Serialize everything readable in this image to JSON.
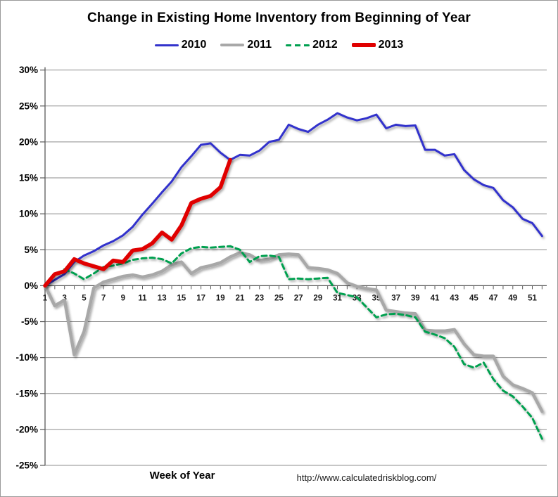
{
  "header": {
    "title": "Change in Existing Home Inventory from Beginning of Year"
  },
  "footer": {
    "xlabel": "Week of Year",
    "source_url": "http://www.calculatedriskblog.com/"
  },
  "colors": {
    "grid": "#8c8c8c",
    "axis": "#595959",
    "tick_text": "#1a1a1a",
    "series_2010": "#3333CC",
    "series_2011": "#A8A8A8",
    "series_2012": "#00A050",
    "series_2013": "#E00000"
  },
  "chart_data": {
    "type": "line",
    "title": "Change in Existing Home Inventory from Beginning of Year",
    "xlabel": "Week of Year",
    "ylabel": "",
    "x_unit": "week of year",
    "xlim": [
      1,
      52
    ],
    "ylim": [
      -25,
      30
    ],
    "x_ticks": [
      1,
      3,
      5,
      7,
      9,
      11,
      13,
      15,
      17,
      19,
      21,
      23,
      25,
      27,
      29,
      31,
      33,
      35,
      37,
      39,
      41,
      43,
      45,
      47,
      49,
      51
    ],
    "y_ticks": [
      "30%",
      "25%",
      "20%",
      "15%",
      "10%",
      "5%",
      "0%",
      "-5%",
      "-10%",
      "-15%",
      "-20%",
      "-25%"
    ],
    "grid": true,
    "legend_position": "top-center",
    "annotation": "http://www.calculatedriskblog.com/",
    "series": [
      {
        "name": "2010",
        "color": "#3333CC",
        "style": "solid",
        "width": 3,
        "values": [
          0,
          0.8,
          1.6,
          3.3,
          4.2,
          4.8,
          5.6,
          6.2,
          7.0,
          8.2,
          9.9,
          11.4,
          13.0,
          14.5,
          16.5,
          18.0,
          19.6,
          19.8,
          18.5,
          17.5,
          18.2,
          18.1,
          18.8,
          20.0,
          20.3,
          22.4,
          21.8,
          21.4,
          22.4,
          23.1,
          24.0,
          23.4,
          23.0,
          23.3,
          23.8,
          21.9,
          22.4,
          22.2,
          22.3,
          18.9,
          18.9,
          18.1,
          18.3,
          16.1,
          14.8,
          14.0,
          13.6,
          11.9,
          10.9,
          9.3,
          8.7,
          6.9
        ]
      },
      {
        "name": "2011",
        "color": "#A8A8A8",
        "style": "solid",
        "width": 4.5,
        "values": [
          0,
          -2.8,
          -2.0,
          -9.6,
          -6.4,
          -0.3,
          0.5,
          0.9,
          1.3,
          1.5,
          1.2,
          1.5,
          2.0,
          2.9,
          3.3,
          1.7,
          2.5,
          2.8,
          3.2,
          4.0,
          4.6,
          4.3,
          3.5,
          3.7,
          4.3,
          4.4,
          4.3,
          2.5,
          2.4,
          2.2,
          1.7,
          0.4,
          -0.1,
          -0.4,
          -0.6,
          -3.4,
          -3.6,
          -3.8,
          -3.9,
          -6.2,
          -6.3,
          -6.3,
          -6.1,
          -8.1,
          -9.6,
          -9.8,
          -9.8,
          -12.6,
          -13.8,
          -14.3,
          -14.9,
          -17.5
        ]
      },
      {
        "name": "2012",
        "color": "#00A050",
        "style": "dashed",
        "width": 3,
        "values": [
          0,
          1.4,
          2.3,
          1.7,
          0.9,
          1.7,
          2.6,
          2.8,
          3.1,
          3.6,
          3.8,
          3.9,
          3.7,
          3.1,
          4.5,
          5.2,
          5.4,
          5.3,
          5.4,
          5.5,
          5.0,
          3.3,
          4.1,
          4.2,
          4.0,
          0.9,
          1.0,
          0.9,
          1.0,
          1.1,
          -1.0,
          -1.3,
          -1.6,
          -3.0,
          -4.4,
          -4.0,
          -3.9,
          -4.1,
          -4.4,
          -6.4,
          -6.8,
          -7.3,
          -8.5,
          -10.9,
          -11.4,
          -10.7,
          -13.0,
          -14.6,
          -15.4,
          -16.8,
          -18.4,
          -21.3
        ]
      },
      {
        "name": "2013",
        "color": "#E00000",
        "style": "solid",
        "width": 5.5,
        "values": [
          0,
          1.6,
          2.0,
          3.7,
          3.1,
          2.7,
          2.3,
          3.5,
          3.3,
          4.9,
          5.1,
          5.9,
          7.4,
          6.4,
          8.4,
          11.5,
          12.1,
          12.5,
          13.7,
          17.5
        ]
      }
    ]
  }
}
